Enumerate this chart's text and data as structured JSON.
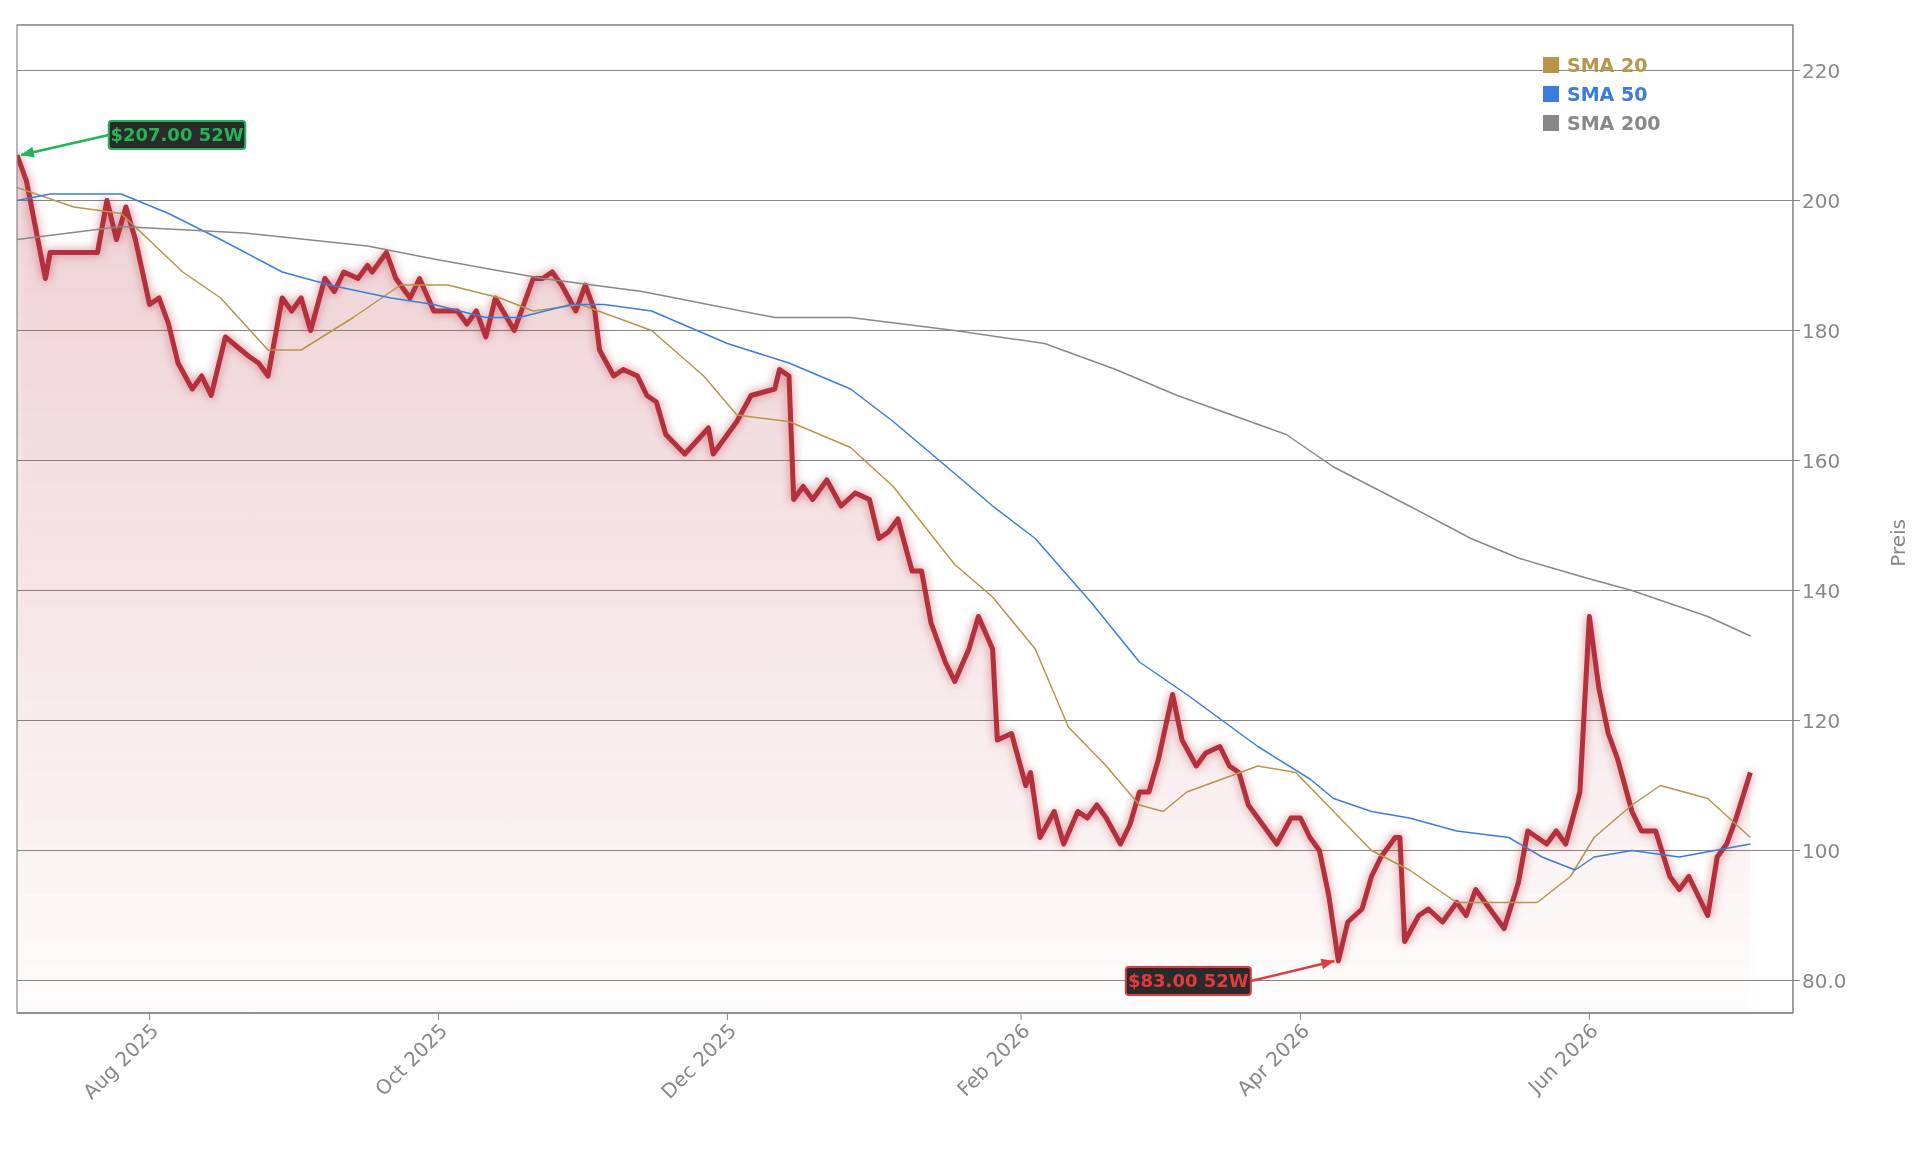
{
  "chart_data": {
    "type": "line",
    "ylabel": "Preis",
    "xlim": [
      "2025-07-04",
      "2026-07-14"
    ],
    "ylim": [
      75,
      227
    ],
    "xticks": [
      {
        "value": "2025-08-01",
        "label": "Aug 2025"
      },
      {
        "value": "2025-10-01",
        "label": "Oct 2025"
      },
      {
        "value": "2025-12-01",
        "label": "Dec 2025"
      },
      {
        "value": "2026-02-01",
        "label": "Feb 2026"
      },
      {
        "value": "2026-04-01",
        "label": "Apr 2026"
      },
      {
        "value": "2026-06-01",
        "label": "Jun 2026"
      }
    ],
    "yticks": [
      {
        "value": 80,
        "label": "80.0"
      },
      100,
      120,
      140,
      160,
      180,
      200,
      220
    ],
    "grid": "y",
    "legend": "top right",
    "annotations": [
      {
        "text": "$207.00 52W",
        "x": "2025-07-04",
        "y": 207
      },
      {
        "text": "$83.00 52W",
        "x": "2026-04-09",
        "y": 83
      }
    ],
    "series": [
      {
        "type": "area",
        "color": "#b3303c",
        "x": [
          "2025-07-04",
          "2025-07-06",
          "2025-07-10",
          "2025-07-11",
          "2025-07-16",
          "2025-07-21",
          "2025-07-23",
          "2025-07-25",
          "2025-07-27",
          "2025-07-29",
          "2025-08-01",
          "2025-08-03",
          "2025-08-05",
          "2025-08-07",
          "2025-08-10",
          "2025-08-12",
          "2025-08-14",
          "2025-08-17",
          "2025-08-22",
          "2025-08-24",
          "2025-08-26",
          "2025-08-29",
          "2025-08-31",
          "2025-09-02",
          "2025-09-04",
          "2025-09-07",
          "2025-09-09",
          "2025-09-11",
          "2025-09-14",
          "2025-09-16",
          "2025-09-17",
          "2025-09-20",
          "2025-09-22",
          "2025-09-25",
          "2025-09-27",
          "2025-09-30",
          "2025-10-05",
          "2025-10-07",
          "2025-10-09",
          "2025-10-11",
          "2025-10-13",
          "2025-10-17",
          "2025-10-21",
          "2025-10-23",
          "2025-10-25",
          "2025-10-27",
          "2025-10-30",
          "2025-11-01",
          "2025-11-03",
          "2025-11-04",
          "2025-11-07",
          "2025-11-09",
          "2025-11-12",
          "2025-11-14",
          "2025-11-16",
          "2025-11-18",
          "2025-11-22",
          "2025-11-27",
          "2025-11-28",
          "2025-12-01",
          "2025-12-03",
          "2025-12-06",
          "2025-12-11",
          "2025-12-12",
          "2025-12-14",
          "2025-12-15",
          "2025-12-17",
          "2025-12-19",
          "2025-12-22",
          "2025-12-25",
          "2025-12-28",
          "2025-12-31",
          "2026-01-02",
          "2026-01-04",
          "2026-01-06",
          "2026-01-09",
          "2026-01-11",
          "2026-01-13",
          "2026-01-16",
          "2026-01-18",
          "2026-01-21",
          "2026-01-23",
          "2026-01-26",
          "2026-01-27",
          "2026-01-30",
          "2026-02-02",
          "2026-02-03",
          "2026-02-05",
          "2026-02-08",
          "2026-02-10",
          "2026-02-13",
          "2026-02-15",
          "2026-02-17",
          "2026-02-19",
          "2026-02-22",
          "2026-02-24",
          "2026-02-26",
          "2026-02-28",
          "2026-03-02",
          "2026-03-05",
          "2026-03-07",
          "2026-03-10",
          "2026-03-12",
          "2026-03-15",
          "2026-03-17",
          "2026-03-19",
          "2026-03-21",
          "2026-03-23",
          "2026-03-27",
          "2026-03-30",
          "2026-04-01",
          "2026-04-03",
          "2026-04-05",
          "2026-04-07",
          "2026-04-09",
          "2026-04-11",
          "2026-04-14",
          "2026-04-16",
          "2026-04-18",
          "2026-04-21",
          "2026-04-22",
          "2026-04-23",
          "2026-04-26",
          "2026-04-28",
          "2026-05-01",
          "2026-05-04",
          "2026-05-06",
          "2026-05-08",
          "2026-05-11",
          "2026-05-14",
          "2026-05-17",
          "2026-05-19",
          "2026-05-21",
          "2026-05-23",
          "2026-05-25",
          "2026-05-27",
          "2026-05-30",
          "2026-06-01",
          "2026-06-03",
          "2026-06-05",
          "2026-06-07",
          "2026-06-10",
          "2026-06-12",
          "2026-06-15",
          "2026-06-18",
          "2026-06-20",
          "2026-06-22",
          "2026-06-26",
          "2026-06-28",
          "2026-06-30",
          "2026-07-02",
          "2026-07-05"
        ],
        "values": [
          207,
          203,
          188,
          192,
          192,
          192,
          200,
          194,
          199,
          194,
          184,
          185,
          181,
          175,
          171,
          173,
          170,
          179,
          176,
          175,
          173,
          185,
          183,
          185,
          180,
          188,
          186,
          189,
          188,
          190,
          189,
          192,
          188,
          185,
          188,
          183,
          183,
          181,
          183,
          179,
          185,
          180,
          188,
          188,
          189,
          187,
          183,
          187,
          183,
          177,
          173,
          174,
          173,
          170,
          169,
          164,
          161,
          165,
          161,
          164,
          166,
          170,
          171,
          174,
          173,
          154,
          156,
          154,
          157,
          153,
          155,
          154,
          148,
          149,
          151,
          143,
          143,
          135,
          129,
          126,
          131,
          136,
          131,
          117,
          118,
          110,
          112,
          102,
          106,
          101,
          106,
          105,
          107,
          105,
          101,
          104,
          109,
          109,
          114,
          124,
          117,
          113,
          115,
          116,
          113,
          112,
          107,
          105,
          101,
          105,
          105,
          102,
          100,
          93,
          83,
          89,
          91,
          96,
          99,
          102,
          102,
          86,
          90,
          91,
          89,
          92,
          90,
          94,
          91,
          88,
          95,
          103,
          102,
          101,
          103,
          101,
          109,
          136,
          125,
          118,
          114,
          106,
          103,
          103,
          96,
          94,
          96,
          90,
          99,
          101,
          105,
          112
        ]
      },
      {
        "name": "SMA 20",
        "color": "#b8954a",
        "x": [
          "2025-07-04",
          "2025-07-16",
          "2025-07-26",
          "2025-08-08",
          "2025-08-16",
          "2025-08-26",
          "2025-09-02",
          "2025-09-13",
          "2025-09-23",
          "2025-10-03",
          "2025-10-14",
          "2025-10-21",
          "2025-10-31",
          "2025-11-15",
          "2025-11-26",
          "2025-12-03",
          "2025-12-14",
          "2025-12-27",
          "2026-01-05",
          "2026-01-18",
          "2026-01-26",
          "2026-02-04",
          "2026-02-11",
          "2026-02-19",
          "2026-02-26",
          "2026-03-03",
          "2026-03-08",
          "2026-03-23",
          "2026-03-31",
          "2026-04-08",
          "2026-04-16",
          "2026-04-24",
          "2026-05-04",
          "2026-05-15",
          "2026-05-21",
          "2026-05-28",
          "2026-06-02",
          "2026-06-10",
          "2026-06-16",
          "2026-06-26",
          "2026-07-05"
        ],
        "values": [
          202,
          199,
          198,
          189,
          185,
          177,
          177,
          182,
          187,
          187,
          185,
          183,
          184,
          180,
          173,
          167,
          166,
          162,
          156,
          144,
          139,
          131,
          119,
          113,
          107,
          106,
          109,
          113,
          112,
          106,
          100,
          97,
          92,
          92,
          92,
          96,
          102,
          107,
          110,
          108,
          102
        ]
      },
      {
        "name": "SMA 50",
        "color": "#3b7ddd",
        "x": [
          "2025-07-04",
          "2025-07-11",
          "2025-07-26",
          "2025-08-05",
          "2025-08-16",
          "2025-08-29",
          "2025-09-08",
          "2025-09-21",
          "2025-09-30",
          "2025-10-11",
          "2025-10-18",
          "2025-10-29",
          "2025-11-05",
          "2025-11-15",
          "2025-12-01",
          "2025-12-14",
          "2025-12-27",
          "2026-01-05",
          "2026-01-18",
          "2026-01-26",
          "2026-02-04",
          "2026-02-16",
          "2026-02-26",
          "2026-03-08",
          "2026-03-23",
          "2026-04-03",
          "2026-04-08",
          "2026-04-16",
          "2026-04-24",
          "2026-05-04",
          "2026-05-15",
          "2026-05-22",
          "2026-05-29",
          "2026-06-02",
          "2026-06-10",
          "2026-06-20",
          "2026-07-05"
        ],
        "values": [
          200,
          201,
          201,
          198,
          194,
          189,
          187,
          185,
          184,
          182,
          182,
          184,
          184,
          183,
          178,
          175,
          171,
          166,
          158,
          153,
          148,
          138,
          129,
          124,
          116,
          111,
          108,
          106,
          105,
          103,
          102,
          99,
          97,
          99,
          100,
          99,
          101
        ]
      },
      {
        "name": "SMA 200",
        "color": "#888888",
        "x": [
          "2025-07-04",
          "2025-07-26",
          "2025-08-21",
          "2025-09-16",
          "2025-09-30",
          "2025-10-23",
          "2025-11-13",
          "2025-12-11",
          "2025-12-27",
          "2026-01-18",
          "2026-02-06",
          "2026-02-21",
          "2026-03-06",
          "2026-03-29",
          "2026-04-08",
          "2026-04-24",
          "2026-05-07",
          "2026-05-17",
          "2026-05-31",
          "2026-06-10",
          "2026-06-26",
          "2026-07-05"
        ],
        "values": [
          194,
          196,
          195,
          193,
          191,
          188,
          186,
          182,
          182,
          180,
          178,
          174,
          170,
          164,
          159,
          153,
          148,
          145,
          142,
          140,
          136,
          133
        ]
      }
    ]
  }
}
